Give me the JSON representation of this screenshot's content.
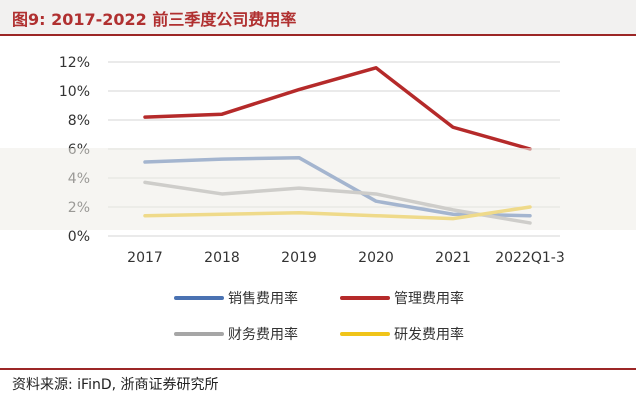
{
  "header": {
    "title": "图9:  2017-2022 前三季度公司费用率"
  },
  "footer": {
    "source": "资料来源: iFinD, 浙商证券研究所"
  },
  "chart_data": {
    "type": "line",
    "title": "2017-2022 前三季度公司费用率",
    "categories": [
      "2017",
      "2018",
      "2019",
      "2020",
      "2021",
      "2022Q1-3"
    ],
    "y_ticks": [
      "0%",
      "2%",
      "4%",
      "6%",
      "8%",
      "10%",
      "12%"
    ],
    "ylim": [
      0,
      12
    ],
    "grid": true,
    "legend_position": "bottom",
    "series": [
      {
        "name": "销售费用率",
        "color": "#4a72b2",
        "values": [
          5.1,
          5.3,
          5.4,
          2.4,
          1.5,
          1.4
        ]
      },
      {
        "name": "管理费用率",
        "color": "#b52a2a",
        "values": [
          8.2,
          8.4,
          10.1,
          11.6,
          7.5,
          6.0
        ]
      },
      {
        "name": "财务费用率",
        "color": "#a6a6a6",
        "values": [
          3.7,
          2.9,
          3.3,
          2.9,
          1.8,
          0.9
        ]
      },
      {
        "name": "研发费用率",
        "color": "#f0c419",
        "values": [
          1.4,
          1.5,
          1.6,
          1.4,
          1.2,
          2.0
        ]
      }
    ]
  }
}
